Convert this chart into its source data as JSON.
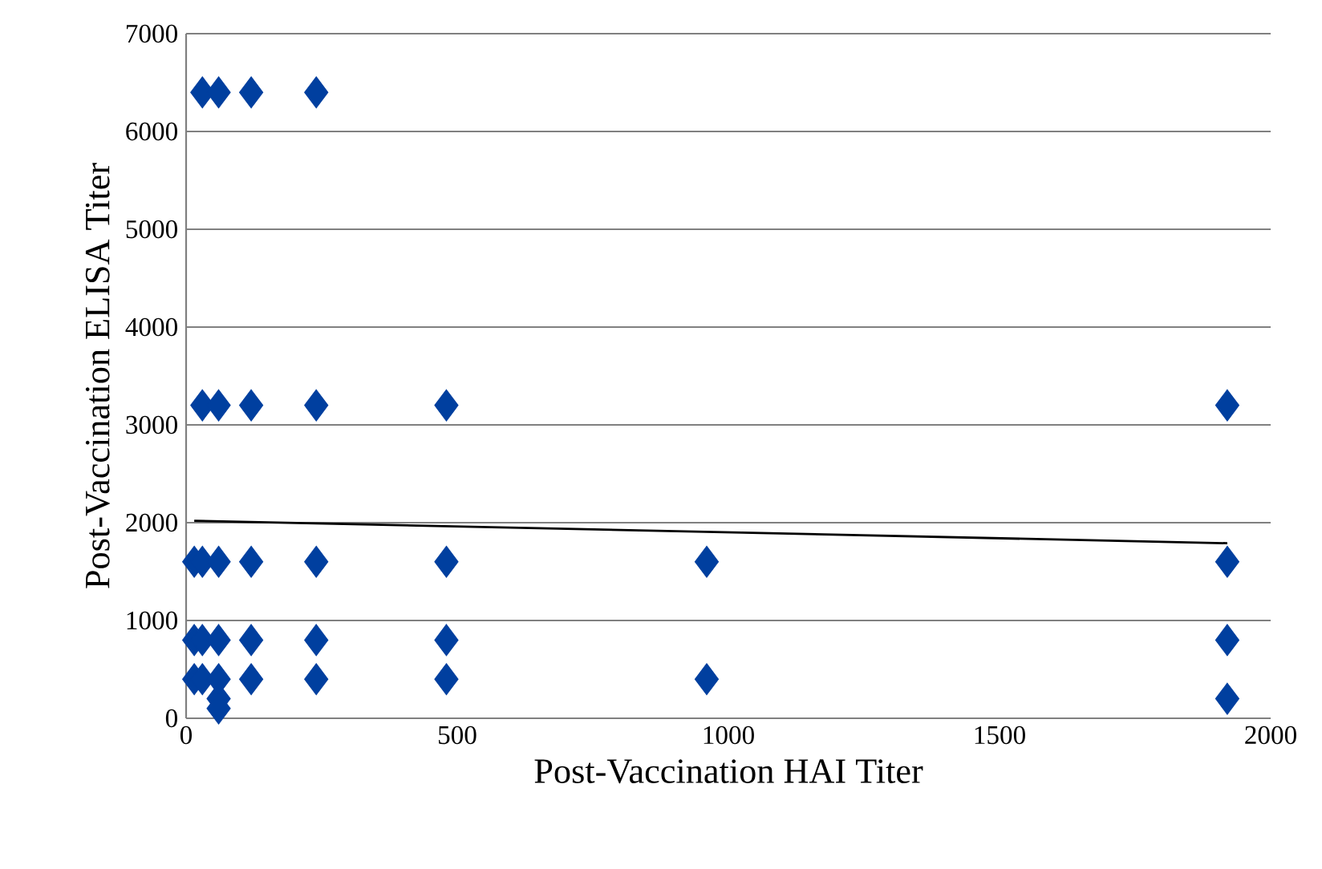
{
  "chart_data": {
    "type": "scatter",
    "xlabel": "Post-Vaccination HAI Titer",
    "ylabel": "Post-Vaccination ELISA Titer",
    "xlim": [
      0,
      2000
    ],
    "xticks": [
      0,
      500,
      1000,
      1500,
      2000
    ],
    "ylim": [
      0,
      7000
    ],
    "yticks": [
      0,
      1000,
      2000,
      3000,
      4000,
      5000,
      6000,
      7000
    ],
    "grid": "y",
    "series": [
      {
        "marker": "diamond",
        "color": "#003f9f",
        "x": [
          30,
          60,
          120,
          240,
          30,
          60,
          120,
          240,
          480,
          1920,
          15,
          30,
          60,
          120,
          240,
          480,
          960,
          1920,
          15,
          30,
          60,
          120,
          240,
          480,
          1920,
          15,
          30,
          60,
          120,
          240,
          480,
          960,
          60,
          60,
          1920
        ],
        "values": [
          6400,
          6400,
          6400,
          6400,
          3200,
          3200,
          3200,
          3200,
          3200,
          3200,
          1600,
          1600,
          1600,
          1600,
          1600,
          1600,
          1600,
          1600,
          800,
          800,
          800,
          800,
          800,
          800,
          800,
          400,
          400,
          400,
          400,
          400,
          400,
          400,
          200,
          100,
          200
        ]
      },
      {
        "type": "line",
        "marker": "none",
        "color": "#000000",
        "x": [
          15,
          1920
        ],
        "values": [
          2020,
          1790
        ]
      }
    ]
  }
}
